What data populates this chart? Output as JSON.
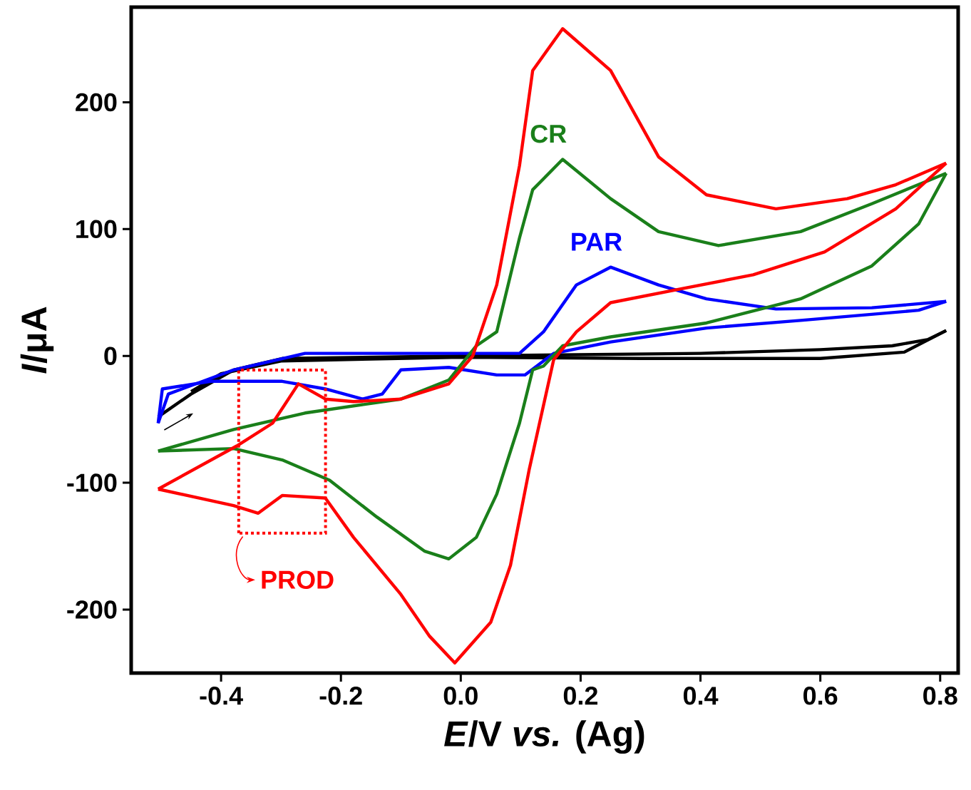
{
  "chart_data": {
    "type": "line",
    "xlabel": "*E*/V *vs.* (Ag)",
    "ylabel": "*I*/μA",
    "xlim": [
      -0.55,
      0.83
    ],
    "ylim": [
      -250,
      275
    ],
    "xticks": [
      -0.4,
      -0.2,
      {
        "value": 0,
        "label": "0.0"
      },
      0.2,
      0.4,
      0.6,
      0.8
    ],
    "yticks": [
      -200,
      -100,
      0,
      100,
      200
    ],
    "marker": "none",
    "line_style": "solid",
    "annotations": [
      "PROD"
    ],
    "series": [
      {
        "color": "#000000",
        "x": [
          -0.505,
          -0.45,
          -0.379,
          -0.298,
          0,
          0.4,
          0.6,
          0.72,
          0.78,
          0.81
        ],
        "values": [
          -48,
          -30,
          -11,
          -2,
          0,
          2,
          5,
          8,
          13,
          20
        ]
      },
      {
        "color": "#000000",
        "x": [
          0.81,
          0.74,
          0.6,
          0.3,
          0,
          -0.3,
          -0.4,
          -0.45
        ],
        "values": [
          20,
          3,
          -2,
          -2,
          -1,
          -4,
          -14,
          -28
        ]
      },
      {
        "name": "PAR",
        "color": "#0000ff",
        "x": [
          -0.505,
          -0.488,
          -0.379,
          -0.26,
          0.098,
          0.138,
          0.193,
          0.25,
          0.33,
          0.41,
          0.526,
          0.686,
          0.81
        ],
        "values": [
          -53,
          -30,
          -11,
          2,
          2,
          19,
          56,
          70,
          56,
          45,
          37,
          38,
          43
        ]
      },
      {
        "color": "#0000ff",
        "x": [
          0.81,
          0.764,
          0.567,
          0.41,
          0.25,
          0.155,
          0.107,
          0.06,
          -0.02,
          -0.1,
          -0.131,
          -0.164,
          -0.226,
          -0.298,
          -0.417,
          -0.498,
          -0.505
        ],
        "values": [
          43,
          36,
          28,
          22,
          11,
          2,
          -15,
          -15,
          -9,
          -11,
          -30,
          -34,
          -26,
          -20,
          -20,
          -26,
          -53
        ]
      },
      {
        "name": "CR",
        "color": "#1a7f1a",
        "x": [
          -0.505,
          -0.379,
          -0.26,
          -0.1,
          -0.02,
          0.026,
          0.06,
          0.098,
          0.12,
          0.17,
          0.25,
          0.33,
          0.43,
          0.567,
          0.686,
          0.81
        ],
        "values": [
          -75,
          -58,
          -45,
          -34,
          -19,
          8,
          19,
          93,
          131,
          155,
          124,
          98,
          87,
          98,
          120,
          144
        ]
      },
      {
        "color": "#1a7f1a",
        "x": [
          0.81,
          0.764,
          0.686,
          0.567,
          0.41,
          0.25,
          0.17,
          0.138,
          0.12,
          0.098,
          0.06,
          0.026,
          -0.02,
          -0.06,
          -0.14,
          -0.219,
          -0.298,
          -0.379,
          -0.505
        ],
        "values": [
          144,
          104,
          71,
          45,
          26,
          15,
          8,
          -8,
          -11,
          -53,
          -109,
          -143,
          -160,
          -154,
          -127,
          -98,
          -82,
          -73,
          -75
        ]
      },
      {
        "color": "#ff0000",
        "x": [
          -0.505,
          -0.374,
          -0.314,
          -0.271,
          -0.226,
          -0.179,
          -0.1,
          -0.02,
          0.02,
          0.06,
          0.098,
          0.12,
          0.17,
          0.25,
          0.33,
          0.41,
          0.526,
          0.645,
          0.726,
          0.81
        ],
        "values": [
          -105,
          -71,
          -53,
          -22,
          -34,
          -36,
          -34,
          -22,
          0,
          56,
          150,
          225,
          258,
          225,
          157,
          127,
          116,
          124,
          135,
          152
        ]
      },
      {
        "color": "#ff0000",
        "x": [
          0.81,
          0.726,
          0.607,
          0.488,
          0.369,
          0.25,
          0.193,
          0.155,
          0.114,
          0.083,
          0.05,
          -0.01,
          -0.052,
          -0.1,
          -0.179,
          -0.226,
          -0.298,
          -0.338,
          -0.379,
          -0.505
        ],
        "values": [
          152,
          116,
          82,
          64,
          53,
          42,
          19,
          -3,
          -90,
          -165,
          -210,
          -242,
          -221,
          -188,
          -143,
          -112,
          -110,
          -124,
          -118,
          -105
        ]
      }
    ]
  }
}
